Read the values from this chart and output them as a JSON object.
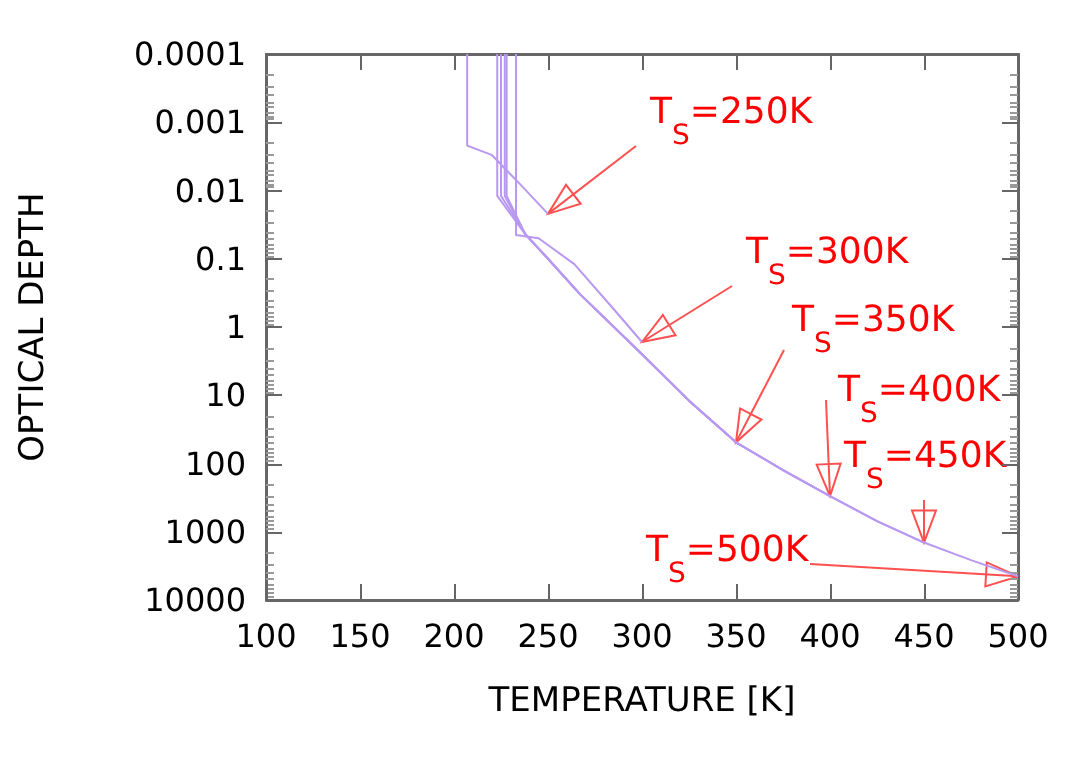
{
  "chart_data": {
    "type": "line",
    "xlabel": "TEMPERATURE [K]",
    "ylabel": "OPTICAL DEPTH",
    "xlim": [
      100,
      500
    ],
    "xticks": [
      100,
      150,
      200,
      250,
      300,
      350,
      400,
      450,
      500
    ],
    "ylim": [
      10000,
      0.0001
    ],
    "yticks": [
      0.0001,
      0.001,
      0.01,
      0.1,
      1,
      10,
      100,
      1000,
      10000
    ],
    "log": "y",
    "grid": false,
    "marker": "none",
    "line_style": "solid",
    "series": [
      {
        "color": "#b998f2",
        "x": [
          207,
          207,
          220,
          235,
          250
        ],
        "values": [
          0.0001,
          0.0022,
          0.003,
          0.008,
          0.022
        ]
      },
      {
        "color": "#b998f2",
        "x": [
          233,
          233,
          245,
          264,
          285,
          300
        ],
        "values": [
          0.0001,
          0.045,
          0.05,
          0.12,
          0.55,
          1.66
        ]
      },
      {
        "color": "#b998f2",
        "x": [
          223,
          223,
          238,
          250,
          267,
          300,
          325,
          350
        ],
        "values": [
          0.0001,
          0.012,
          0.044,
          0.1,
          0.33,
          2.5,
          12,
          49
        ]
      },
      {
        "color": "#b998f2",
        "x": [
          225,
          225,
          238,
          250,
          267,
          300,
          325,
          350,
          375,
          400
        ],
        "values": [
          0.0001,
          0.012,
          0.044,
          0.1,
          0.33,
          2.5,
          12,
          49,
          125,
          300
        ]
      },
      {
        "color": "#b998f2",
        "x": [
          227,
          227,
          238,
          250,
          267,
          300,
          325,
          350,
          375,
          400,
          425,
          450
        ],
        "values": [
          0.0001,
          0.012,
          0.044,
          0.1,
          0.33,
          2.5,
          12,
          49,
          125,
          300,
          700,
          1440
        ]
      },
      {
        "color": "#b998f2",
        "x": [
          228,
          228,
          238,
          250,
          267,
          300,
          325,
          350,
          375,
          400,
          425,
          450,
          475,
          500
        ],
        "values": [
          0.0001,
          0.012,
          0.044,
          0.1,
          0.33,
          2.5,
          12,
          49,
          125,
          300,
          700,
          1440,
          2600,
          4500
        ]
      }
    ],
    "annotations": [
      {
        "text": "T$_{S}$=250K",
        "x": 250,
        "y": 0.022
      },
      {
        "text": "T$_{S}$=300K",
        "x": 300,
        "y": 1.66
      },
      {
        "text": "T$_{S}$=350K",
        "x": 350,
        "y": 49
      },
      {
        "text": "T$_{S}$=400K",
        "x": 400,
        "y": 300
      },
      {
        "text": "T$_{S}$=450K",
        "x": 450,
        "y": 1440
      },
      {
        "text": "T$_{S}$=500K",
        "x": 500,
        "y": 4500
      }
    ]
  }
}
